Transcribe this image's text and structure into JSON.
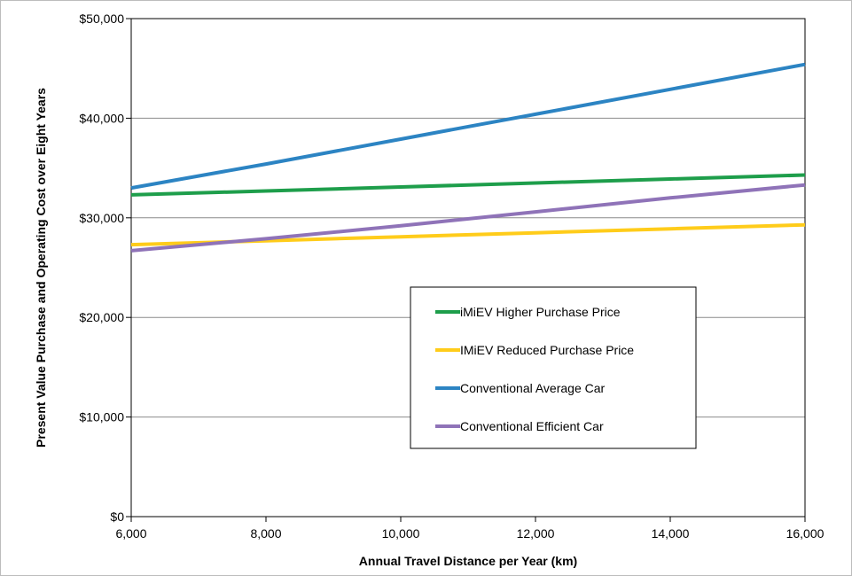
{
  "chart_data": {
    "type": "line",
    "title": "",
    "xlabel": "Annual Travel Distance per Year (km)",
    "ylabel": "Present Value Purchase and Operating Cost over Eight Years",
    "x": [
      6000,
      8000,
      10000,
      12000,
      14000,
      16000
    ],
    "x_tick_labels": [
      "6,000",
      "8,000",
      "10,000",
      "12,000",
      "14,000",
      "16,000"
    ],
    "xlim": [
      6000,
      16000
    ],
    "y_ticks": [
      0,
      10000,
      20000,
      30000,
      40000,
      50000
    ],
    "y_tick_labels": [
      "$0",
      "$10,000",
      "$20,000",
      "$30,000",
      "$40,000",
      "$50,000"
    ],
    "ylim": [
      0,
      50000
    ],
    "grid": "horizontal",
    "legend_position": "center-right",
    "series": [
      {
        "name": "iMiEV Higher Purchase Price",
        "color": "#1e9e4b",
        "values": [
          32300,
          32700,
          33100,
          33500,
          33900,
          34300
        ]
      },
      {
        "name": "IMiEV Reduced Purchase Price",
        "color": "#ffcc1a",
        "values": [
          27300,
          27700,
          28100,
          28500,
          28900,
          29300
        ]
      },
      {
        "name": "Conventional Average Car",
        "color": "#2c84c3",
        "values": [
          33000,
          35400,
          37900,
          40400,
          42900,
          45400
        ]
      },
      {
        "name": "Conventional Efficient Car",
        "color": "#8f73b8",
        "values": [
          26700,
          27900,
          29200,
          30600,
          32000,
          33300
        ]
      }
    ]
  }
}
